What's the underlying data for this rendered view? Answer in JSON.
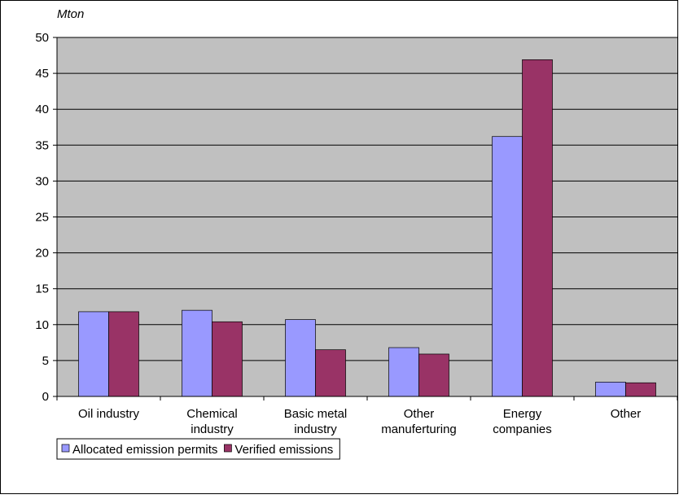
{
  "chart_data": {
    "type": "bar",
    "y_label": "Mton",
    "categories": [
      "Oil industry",
      "Chemical\nindustry",
      "Basic metal\nindustry",
      "Other\nmanuferturing",
      "Energy\ncompanies",
      "Other"
    ],
    "series": [
      {
        "name": "Allocated emission permits",
        "color": "#9999ff",
        "values": [
          11.8,
          12.0,
          10.7,
          6.8,
          36.2,
          2.0
        ]
      },
      {
        "name": "Verified emissions",
        "color": "#993366",
        "values": [
          11.8,
          10.4,
          6.5,
          5.9,
          46.9,
          1.9
        ]
      }
    ],
    "ylim": [
      0,
      50
    ],
    "yticks": [
      0,
      5,
      10,
      15,
      20,
      25,
      30,
      35,
      40,
      45,
      50
    ],
    "grid": true,
    "legend": "bottom-left"
  }
}
